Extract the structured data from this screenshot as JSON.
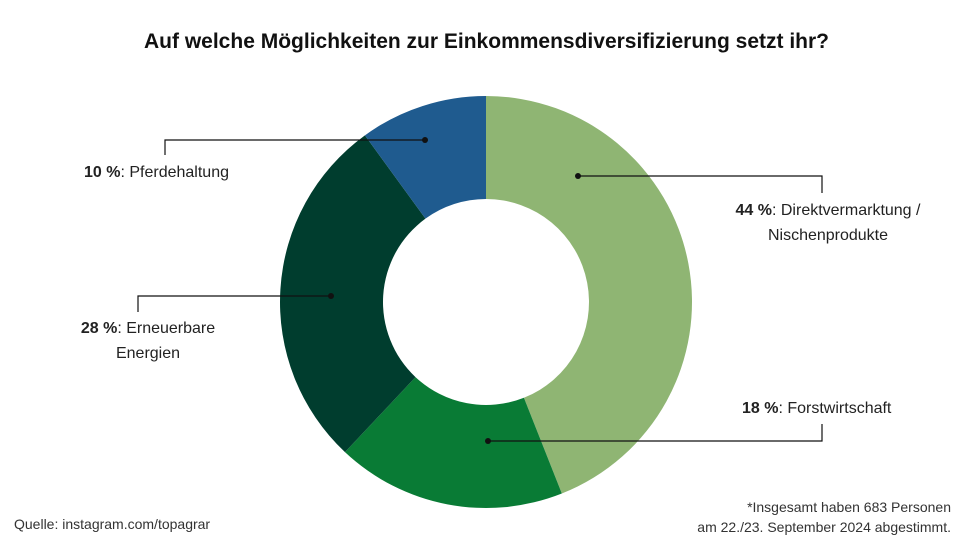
{
  "chart_data": {
    "type": "pie",
    "style": "donut",
    "title": "Auf welche Möglichkeiten zur Einkommensdiversifizierung setzt ihr?",
    "unit": "%",
    "slices": [
      {
        "label": "Direktvermarktung / Nischenprodukte",
        "value": 44,
        "color": "#8fb573"
      },
      {
        "label": "Forstwirtschaft",
        "value": 18,
        "color": "#097b35"
      },
      {
        "label": "Erneuerbare Energien",
        "value": 28,
        "color": "#003d2e"
      },
      {
        "label": "Pferdehaltung",
        "value": 10,
        "color": "#1f5b8f"
      }
    ]
  },
  "labels": {
    "direkt": {
      "pct": "44 %",
      "text_l1": ": Direktvermarktung /",
      "text_l2": "Nischenprodukte"
    },
    "forst": {
      "pct": "18 %",
      "text": ": Forstwirtschaft"
    },
    "erneuerbar": {
      "pct": "28 %",
      "text_l1": ": Erneuerbare",
      "text_l2": "Energien"
    },
    "pferde": {
      "pct": "10 %",
      "text": ": Pferdehaltung"
    }
  },
  "source": "Quelle: instagram.com/topagrar",
  "note": {
    "line1": "*Insgesamt haben 683 Personen",
    "line2": "am 22./23. September 2024 abgestimmt."
  }
}
